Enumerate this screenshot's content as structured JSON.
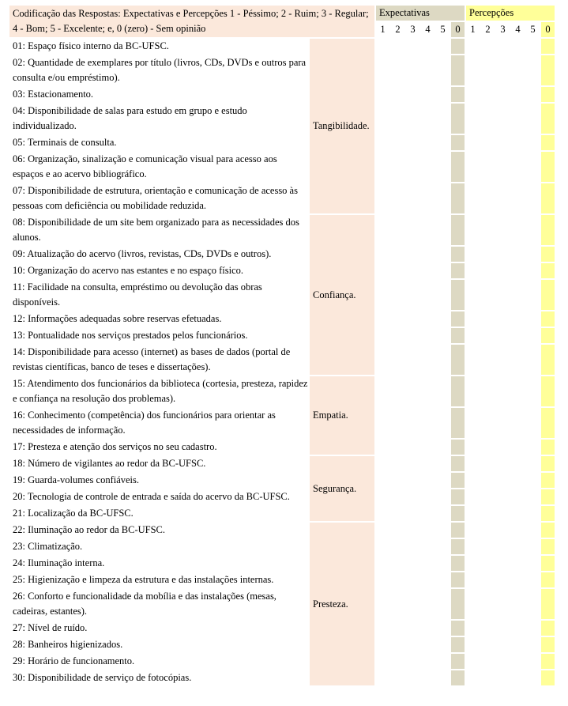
{
  "header": {
    "coding": "Codificação das Respostas: Expectativas e Percepções 1 - Péssimo; 2 - Ruim; 3 - Regular; 4 - Bom; 5 - Excelente; e, 0 (zero) - Sem opinião",
    "expectativas": "Expectativas",
    "percepcoes": "Percepções",
    "scale": [
      "1",
      "2",
      "3",
      "4",
      "5",
      "0"
    ]
  },
  "colors": {
    "peach": "#fbe8db",
    "gray": "#ddd9c3",
    "yellow": "#ffff99"
  },
  "categories": [
    {
      "label": "Tangibilidade.",
      "questions": [
        "01: Espaço físico interno da BC-UFSC.",
        "02: Quantidade de exemplares por título (livros, CDs, DVDs e outros para consulta e/ou empréstimo).",
        "03: Estacionamento.",
        "04: Disponibilidade de salas para estudo em grupo e estudo individualizado.",
        "05: Terminais de consulta.",
        "06: Organização, sinalização e comunicação visual para acesso aos espaços e ao acervo bibliográfico.",
        "07: Disponibilidade de estrutura, orientação e comunicação de acesso às pessoas com deficiência ou mobilidade reduzida."
      ]
    },
    {
      "label": "Confiança.",
      "questions": [
        "08: Disponibilidade de um site bem organizado para as necessidades dos alunos.",
        "09: Atualização do acervo (livros, revistas, CDs, DVDs e outros).",
        "10: Organização do acervo nas estantes e no espaço físico.",
        "11: Facilidade na consulta, empréstimo ou devolução das obras disponíveis.",
        "12: Informações adequadas sobre reservas efetuadas.",
        "13: Pontualidade nos serviços prestados pelos funcionários.",
        "14: Disponibilidade para acesso (internet) as bases de dados (portal de revistas científicas, banco de teses e dissertações)."
      ]
    },
    {
      "label": "Empatia.",
      "questions": [
        "15: Atendimento dos funcionários da biblioteca (cortesia, presteza, rapidez e confiança na resolução dos problemas).",
        "16: Conhecimento (competência) dos funcionários para orientar as necessidades de informação.",
        "17: Presteza e atenção dos serviços no seu cadastro."
      ]
    },
    {
      "label": "Segurança.",
      "questions": [
        "18: Número de vigilantes ao redor da BC-UFSC.",
        "19: Guarda-volumes confiáveis.",
        "20: Tecnologia de controle de entrada e saída do acervo da BC-UFSC.",
        "21: Localização da BC-UFSC."
      ]
    },
    {
      "label": "Presteza.",
      "questions": [
        "22: Iluminação ao redor da BC-UFSC.",
        "23: Climatização.",
        "24: Iluminação interna.",
        "25: Higienização e limpeza da estrutura e das instalações internas.",
        "26: Conforto e funcionalidade da mobília e das instalações (mesas, cadeiras, estantes).",
        "27: Nível de ruído.",
        "28: Banheiros higienizados.",
        "29: Horário de funcionamento.",
        "30: Disponibilidade de serviço de fotocópias."
      ]
    }
  ]
}
